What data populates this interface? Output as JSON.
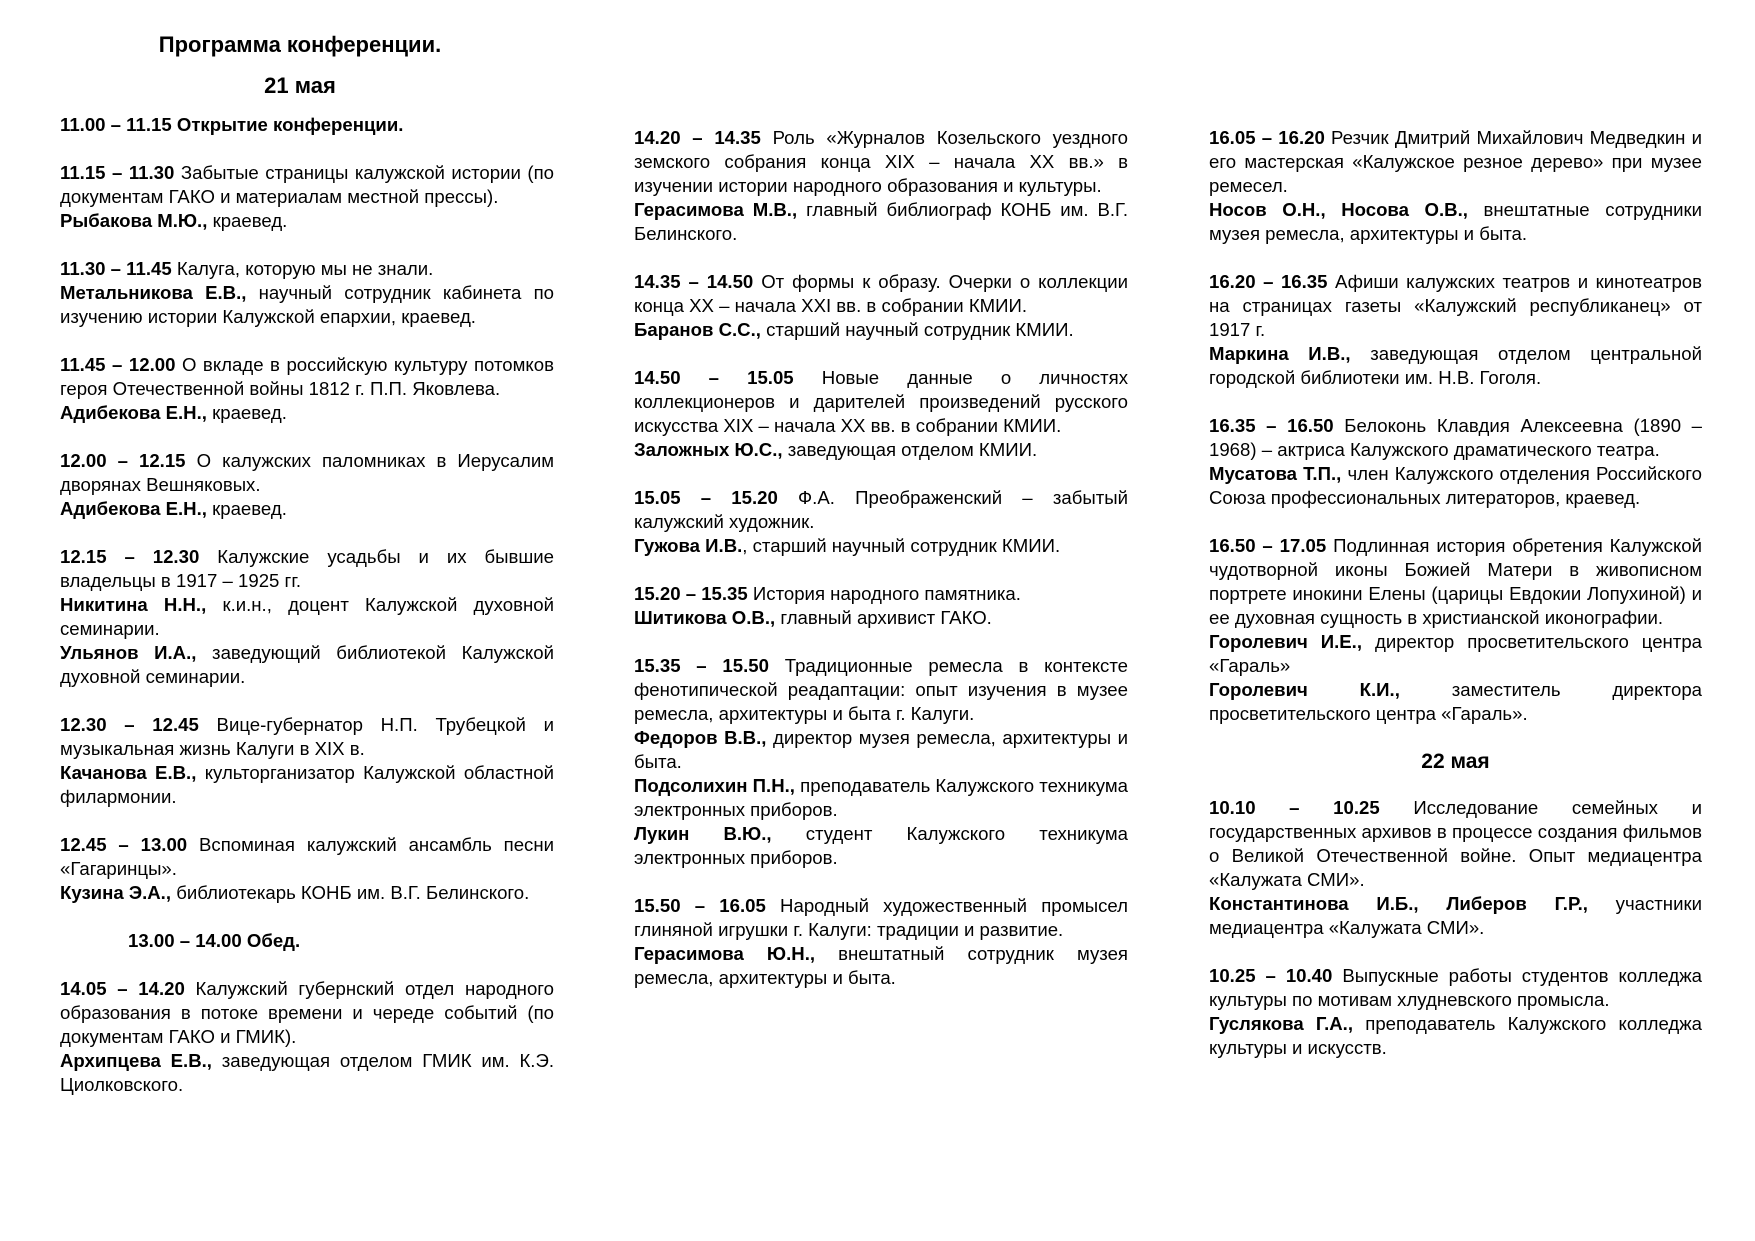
{
  "header": {
    "title": "Программа конференции.",
    "day1": "21 мая"
  },
  "columns": [
    [
      {
        "time": "11.00 – 11.15",
        "title": "Открытие конференции.",
        "bold_title": true,
        "speakers": []
      },
      {
        "time": "11.15 – 11.30",
        "title": "Забытые страницы калужской истории (по документам ГАКО и материалам местной прессы).",
        "speakers": [
          {
            "name": "Рыбакова М.Ю.,",
            "role": "краевед."
          }
        ]
      },
      {
        "time": "11.30 – 11.45",
        "title": "Калуга, которую мы не знали.",
        "speakers": [
          {
            "name": "Метальникова Е.В.,",
            "role": "научный сотрудник кабинета по изучению истории Калужской епархии, краевед."
          }
        ]
      },
      {
        "time": "11.45 – 12.00",
        "title": "О вкладе в российскую культуру потомков героя Отечественной войны 1812 г. П.П. Яковлева.",
        "speakers": [
          {
            "name": "Адибекова Е.Н.,",
            "role": "краевед."
          }
        ]
      },
      {
        "time": "12.00 – 12.15",
        "title": "О калужских паломниках в Иерусалим дворянах Вешняковых.",
        "speakers": [
          {
            "name": "Адибекова Е.Н.,",
            "role": "краевед."
          }
        ]
      },
      {
        "time": "12.15 – 12.30",
        "title": "Калужские усадьбы и их бывшие владельцы в 1917 – 1925 гг.",
        "speakers": [
          {
            "name": "Никитина Н.Н.,",
            "role": "к.и.н., доцент Калужской духовной семинарии."
          },
          {
            "name": "Ульянов И.А.,",
            "role": "заведующий библиотекой Калужской духовной семинарии."
          }
        ]
      },
      {
        "time": "12.30 – 12.45",
        "title": "Вице-губернатор Н.П. Трубецкой и музыкальная жизнь Калуги в XIX в.",
        "speakers": [
          {
            "name": "Качанова Е.В.,",
            "role": "культорганизатор Калужской областной филармонии."
          }
        ]
      },
      {
        "time": "12.45 – 13.00",
        "title": "Вспоминая калужский ансамбль песни «Гагаринцы».",
        "speakers": [
          {
            "name": "Кузина Э.А.,",
            "role": "библиотекарь КОНБ им. В.Г. Белинского."
          }
        ]
      },
      {
        "break": "13.00 – 14.00 Обед."
      },
      {
        "time": "14.05 – 14.20",
        "title": "Калужский губернский отдел народного образования в потоке времени и череде событий (по документам ГАКО и ГМИК).",
        "speakers": [
          {
            "name": "Архипцева Е.В.,",
            "role": "заведующая отделом ГМИК им. К.Э. Циолковского."
          }
        ]
      }
    ],
    [
      {
        "time": "14.20 – 14.35",
        "title": "Роль «Журналов Козельского уездного земского собрания конца XIX – начала XX вв.» в изучении истории народного образования и культуры.",
        "speakers": [
          {
            "name": "Герасимова М.В.,",
            "role": "главный библиограф КОНБ им. В.Г. Белинского."
          }
        ]
      },
      {
        "time": "14.35 – 14.50",
        "title": "От формы к образу. Очерки о коллекции конца XX – начала XXI вв. в собрании КМИИ.",
        "speakers": [
          {
            "name": "Баранов С.С.,",
            "role": "старший научный сотрудник КМИИ."
          }
        ]
      },
      {
        "time": "14.50 – 15.05",
        "title": "Новые данные о личностях коллекционеров и дарителей произведений русского искусства XIX – начала XX вв. в собрании КМИИ.",
        "speakers": [
          {
            "name": "Заложных Ю.С.,",
            "role": "заведующая отделом КМИИ."
          }
        ]
      },
      {
        "time": "15.05 – 15.20",
        "title": "Ф.А. Преображенский – забытый калужский художник.",
        "speakers": [
          {
            "name": "Гужова И.В.",
            "role": ", старший научный сотрудник КМИИ."
          }
        ]
      },
      {
        "time": "15.20 – 15.35",
        "title": "История народного памятника.",
        "speakers": [
          {
            "name": "Шитикова О.В.,",
            "role": "главный архивист ГАКО."
          }
        ]
      },
      {
        "time": "15.35 – 15.50",
        "title": "Традиционные ремесла в контексте фенотипической реадаптации: опыт изучения в музее ремесла, архитектуры и быта г. Калуги.",
        "speakers": [
          {
            "name": "Федоров В.В.,",
            "role": "директор музея ремесла, архитектуры и быта."
          },
          {
            "name": "Подсолихин П.Н.,",
            "role": "преподаватель Калужского техникума электронных приборов."
          },
          {
            "name": "Лукин В.Ю.,",
            "role": "студент Калужского техникума электронных приборов."
          }
        ]
      },
      {
        "time": "15.50 – 16.05",
        "title": "Народный художественный промысел глиняной игрушки г. Калуги: традиции и развитие.",
        "speakers": [
          {
            "name": "Герасимова Ю.Н.,",
            "role": "внештатный сотрудник музея ремесла, архитектуры и быта."
          }
        ]
      }
    ],
    [
      {
        "time": "16.05 – 16.20",
        "title": "Резчик Дмитрий Михайлович Медведкин и его мастерская «Калужское резное дерево» при музее ремесел.",
        "speakers": [
          {
            "name": "Носов О.Н., Носова О.В.,",
            "role": "внештатные сотрудники музея ремесла, архитектуры и быта."
          }
        ]
      },
      {
        "time": "16.20 – 16.35",
        "title": "Афиши калужских театров и кинотеатров на страницах газеты «Калужский республиканец» от 1917 г.",
        "speakers": [
          {
            "name": "Маркина И.В.,",
            "role": "заведующая отделом центральной городской библиотеки им. Н.В. Гоголя."
          }
        ]
      },
      {
        "time": "16.35 – 16.50",
        "title": "Белоконь Клавдия Алексеевна (1890 – 1968) – актриса Калужского драматического театра.",
        "speakers": [
          {
            "name": "Мусатова Т.П.,",
            "role": "член Калужского отделения Российского Союза профессиональных литераторов, краевед."
          }
        ]
      },
      {
        "time": "16.50 – 17.05",
        "title": "Подлинная история обретения Калужской чудотворной иконы Божией Матери в живописном портрете инокини Елены (царицы Евдокии Лопухиной) и ее духовная сущность в христианской иконографии.",
        "speakers": [
          {
            "name": "Горолевич И.Е.,",
            "role": "директор просветительского центра «Гараль»"
          },
          {
            "name": "Горолевич К.И.,",
            "role": "заместитель директора просветительского центра «Гараль»."
          }
        ]
      },
      {
        "day": "22 мая"
      },
      {
        "time": "10.10 – 10.25",
        "title": "Исследование семейных и государственных архивов в процессе создания фильмов о Великой Отечественной войне. Опыт медиацентра «Калужата СМИ».",
        "speakers": [
          {
            "name": "Константинова И.Б., Либеров Г.Р.,",
            "role": "участники медиацентра «Калужата СМИ»."
          }
        ]
      },
      {
        "time": "10.25 – 10.40",
        "title": "Выпускные работы студентов колледжа культуры по мотивам хлудневского промысла.",
        "speakers": [
          {
            "name": "Гуслякова Г.А.,",
            "role": "преподаватель Калужского колледжа культуры и искусств."
          }
        ]
      }
    ]
  ]
}
